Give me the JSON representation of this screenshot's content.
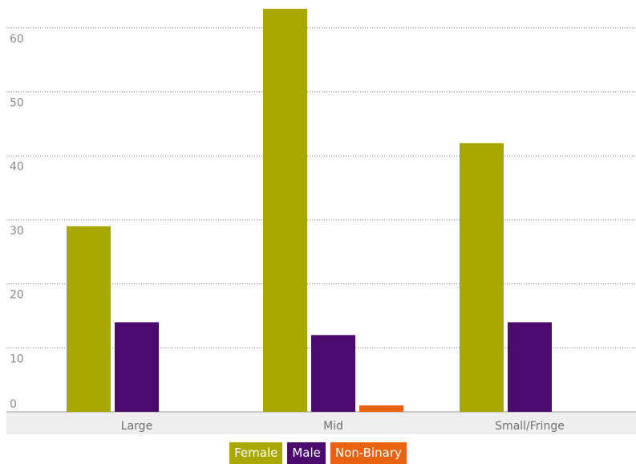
{
  "chart_data": {
    "type": "bar",
    "categories": [
      "Large",
      "Mid",
      "Small/Fringe"
    ],
    "series": [
      {
        "name": "Female",
        "color": "#a8a800",
        "values": [
          29,
          63,
          42
        ]
      },
      {
        "name": "Male",
        "color": "#4b0a6e",
        "values": [
          14,
          12,
          14
        ]
      },
      {
        "name": "Non-Binary",
        "color": "#e8630f",
        "values": [
          0,
          1,
          0
        ]
      }
    ],
    "yticks": [
      0,
      10,
      20,
      30,
      40,
      50,
      60
    ],
    "ylim": [
      0,
      65
    ],
    "grid": true,
    "legend_position": "bottom-center"
  }
}
